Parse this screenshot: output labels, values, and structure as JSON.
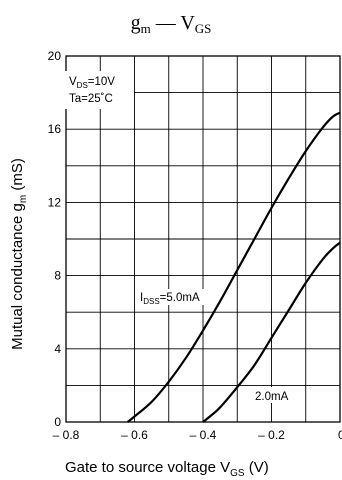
{
  "chart_data": {
    "type": "line",
    "title": {
      "main": "g",
      "main_sub": "m",
      "sep": " — ",
      "second": "V",
      "second_sub": "GS"
    },
    "xlabel": {
      "text": "Gate to source voltage",
      "sym": "V",
      "sym_sub": "GS",
      "unit": "(V)"
    },
    "ylabel": {
      "text": "Mutual conductance",
      "sym": "g",
      "sym_sub": "m",
      "unit": "(mS)"
    },
    "xlim": [
      -0.8,
      0.0
    ],
    "ylim": [
      0,
      20
    ],
    "x_tick_labels": [
      "– 0.8",
      "– 0.6",
      "– 0.4",
      "– 0.2",
      "0"
    ],
    "x_tick_values": [
      -0.8,
      -0.6,
      -0.4,
      -0.2,
      0.0
    ],
    "y_tick_labels": [
      "0",
      "4",
      "8",
      "12",
      "16",
      "20"
    ],
    "y_tick_values": [
      0,
      4,
      8,
      12,
      16,
      20
    ],
    "grid": true,
    "grid_x_step": 0.1,
    "grid_y_step": 2,
    "conditions": [
      {
        "sym": "V",
        "sub": "DS",
        "text": "=10V"
      },
      {
        "sym": "Ta=25˚C",
        "sub": "",
        "text": ""
      }
    ],
    "series": [
      {
        "name_sym": "I",
        "name_sub": "DSS",
        "name_text": "=5.0mA",
        "points": [
          [
            -0.62,
            0
          ],
          [
            -0.6,
            0.3
          ],
          [
            -0.55,
            1.1
          ],
          [
            -0.5,
            2.2
          ],
          [
            -0.45,
            3.5
          ],
          [
            -0.4,
            5.0
          ],
          [
            -0.35,
            6.6
          ],
          [
            -0.3,
            8.3
          ],
          [
            -0.25,
            10.0
          ],
          [
            -0.2,
            11.7
          ],
          [
            -0.15,
            13.3
          ],
          [
            -0.1,
            14.8
          ],
          [
            -0.05,
            16.1
          ],
          [
            -0.02,
            16.7
          ],
          [
            0.0,
            16.9
          ]
        ]
      },
      {
        "name_sym": "",
        "name_sub": "",
        "name_text": "2.0mA",
        "points": [
          [
            -0.4,
            0
          ],
          [
            -0.38,
            0.3
          ],
          [
            -0.35,
            0.8
          ],
          [
            -0.3,
            1.9
          ],
          [
            -0.25,
            3.1
          ],
          [
            -0.2,
            4.6
          ],
          [
            -0.15,
            6.1
          ],
          [
            -0.1,
            7.6
          ],
          [
            -0.05,
            8.9
          ],
          [
            -0.02,
            9.5
          ],
          [
            0.0,
            9.8
          ]
        ]
      }
    ],
    "colors": {
      "line": "#000000",
      "grid": "#000000",
      "background": "#ffffff"
    }
  }
}
